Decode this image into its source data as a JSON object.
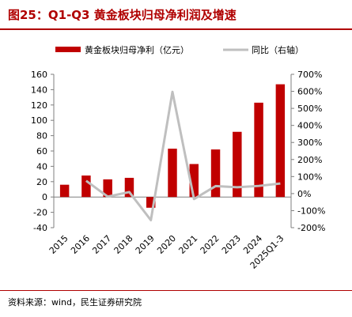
{
  "header": {
    "title": "图25：Q1-Q3 黄金板块归母净利润及增速"
  },
  "footer": {
    "source": "资料来源：wind，民生证券研究院"
  },
  "colors": {
    "bar": "#c00000",
    "line": "#bfbfbf",
    "accent": "#b00000"
  },
  "chart_data": {
    "type": "bar",
    "categories": [
      "2015",
      "2016",
      "2017",
      "2018",
      "2019",
      "2020",
      "2021",
      "2022",
      "2023",
      "2024",
      "2025Q1-3"
    ],
    "series": [
      {
        "name": "黄金板块归母净利（亿元）",
        "type": "bar",
        "axis": "left",
        "values": [
          16,
          28,
          23,
          25,
          -14,
          63,
          43,
          62,
          85,
          123,
          147
        ]
      },
      {
        "name": "同比（右轴）",
        "type": "line",
        "axis": "right",
        "values": [
          null,
          75,
          -18,
          9,
          -156,
          597,
          -32,
          44,
          37,
          45,
          59
        ]
      }
    ],
    "left_axis": {
      "min": -40,
      "max": 160,
      "step": 20,
      "ticks": [
        "160",
        "140",
        "120",
        "100",
        "80",
        "60",
        "40",
        "20",
        "0",
        "-20",
        "-40"
      ]
    },
    "right_axis": {
      "min": -200,
      "max": 700,
      "step": 100,
      "ticks": [
        "700%",
        "600%",
        "500%",
        "400%",
        "300%",
        "200%",
        "100%",
        "0%",
        "-100%",
        "-200%"
      ]
    },
    "legend_position": "top",
    "grid": false
  }
}
